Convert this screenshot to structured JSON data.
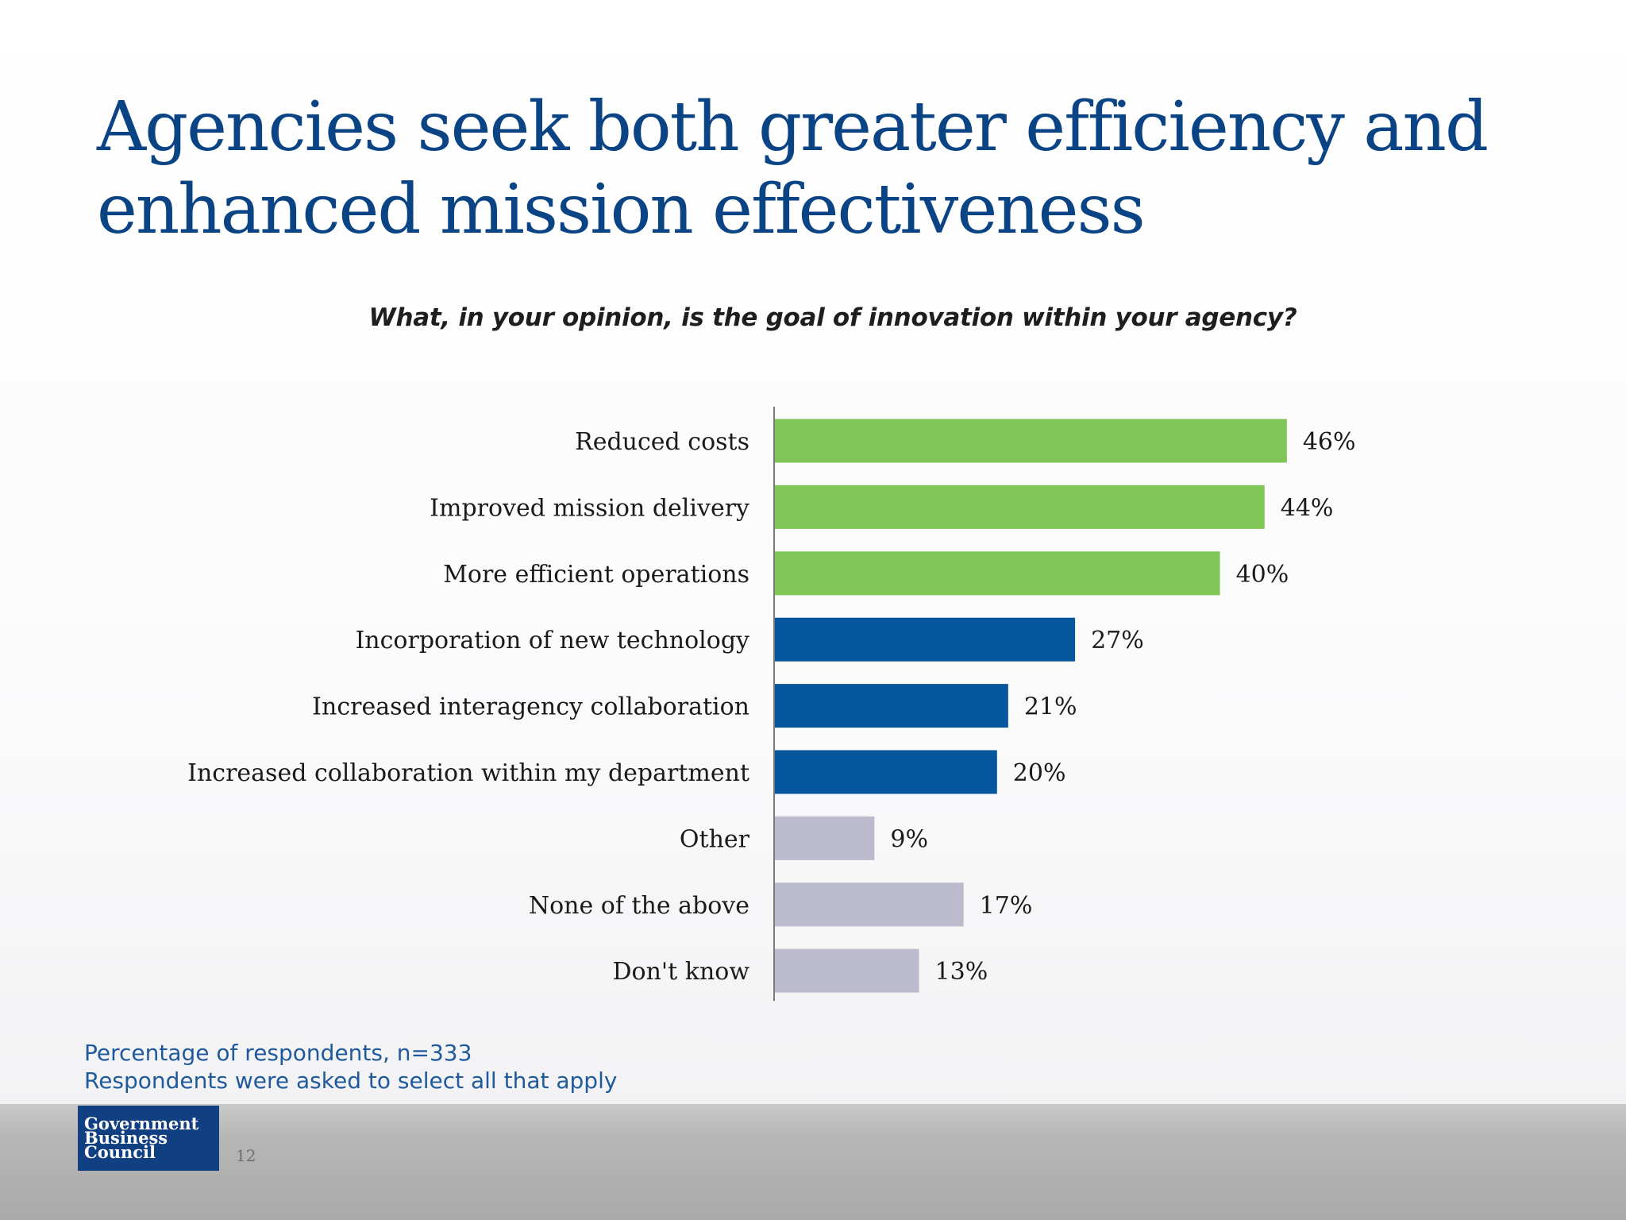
{
  "title": {
    "line1": "Agencies seek both greater efficiency and",
    "line2": "enhanced mission effectiveness"
  },
  "question": "What, in your opinion, is the goal of innovation within your agency?",
  "footnote": {
    "line1": "Percentage of respondents, n=333",
    "line2": "Respondents were asked to select all that apply"
  },
  "logo": {
    "line1": "Government",
    "line2": "Business",
    "line3": "Council"
  },
  "page_number": "12",
  "colors": {
    "title": "#0a4485",
    "green": "#80c656",
    "blue": "#05569c",
    "gray": "#bcbacd"
  },
  "chart_data": {
    "type": "bar",
    "orientation": "horizontal",
    "categories": [
      "Reduced costs",
      "Improved mission delivery",
      "More efficient operations",
      "Incorporation of new technology",
      "Increased interagency collaboration",
      "Increased collaboration within my department",
      "Other",
      "None of the above",
      "Don't know"
    ],
    "values": [
      46,
      44,
      40,
      27,
      21,
      20,
      9,
      17,
      13
    ],
    "value_labels": [
      "46%",
      "44%",
      "40%",
      "27%",
      "21%",
      "20%",
      "9%",
      "17%",
      "13%"
    ],
    "bar_colors": [
      "#80c656",
      "#80c656",
      "#80c656",
      "#05569c",
      "#05569c",
      "#05569c",
      "#bcbacd",
      "#bcbacd",
      "#bcbacd"
    ],
    "unit": "%",
    "xlim": [
      0,
      50
    ],
    "grid": false,
    "legend": "none"
  }
}
